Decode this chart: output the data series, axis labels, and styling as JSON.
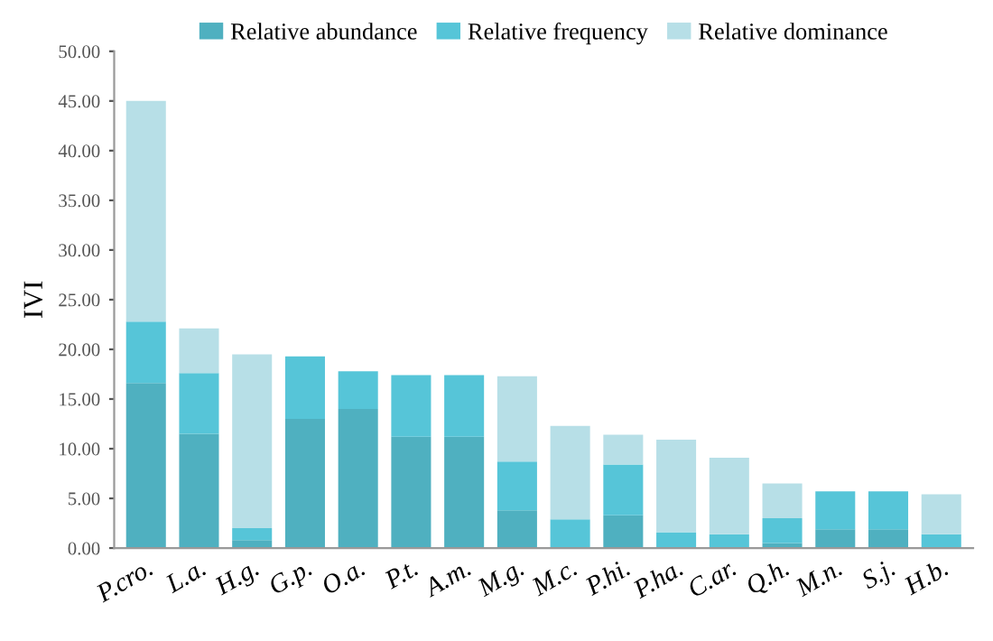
{
  "chart_data": {
    "type": "bar",
    "stacked": true,
    "ylabel": "IVI",
    "categories": [
      "P.cro.",
      "L.a.",
      "H.g.",
      "G.p.",
      "O.a.",
      "P.t.",
      "A.m.",
      "M.g.",
      "M.c.",
      "P.hi.",
      "P.ha.",
      "C.ar.",
      "Q.h.",
      "M.n.",
      "S.j.",
      "H.b."
    ],
    "series": [
      {
        "name": "Relative abundance",
        "color": "#4fb0c0",
        "values": [
          16.6,
          11.5,
          0.8,
          13.0,
          14.0,
          11.2,
          11.2,
          3.8,
          null,
          3.3,
          null,
          null,
          0.5,
          1.9,
          1.9,
          null
        ]
      },
      {
        "name": "Relative frequency",
        "color": "#56c5d8",
        "values": [
          6.2,
          6.1,
          1.2,
          6.3,
          3.8,
          6.2,
          6.2,
          4.9,
          2.9,
          5.1,
          1.6,
          1.4,
          2.5,
          3.8,
          3.8,
          1.4
        ]
      },
      {
        "name": "Relative dominance",
        "color": "#b7dfe7",
        "values": [
          22.2,
          4.5,
          17.5,
          0,
          0,
          0,
          0,
          8.6,
          9.4,
          3.0,
          9.3,
          7.7,
          3.5,
          0,
          0,
          4.0
        ]
      }
    ],
    "ylim": [
      0,
      50
    ],
    "yticks": [
      {
        "value": 0,
        "label": "0.00"
      },
      {
        "value": 5,
        "label": "5.00"
      },
      {
        "value": 10,
        "label": "10.00"
      },
      {
        "value": 15,
        "label": "15.00"
      },
      {
        "value": 20,
        "label": "20.00"
      },
      {
        "value": 25,
        "label": "25.00"
      },
      {
        "value": 30,
        "label": "30.00"
      },
      {
        "value": 35,
        "label": "35.00"
      },
      {
        "value": 40,
        "label": "40.00"
      },
      {
        "value": 45,
        "label": "45.00"
      },
      {
        "value": 50,
        "label": "50.00"
      }
    ],
    "grid": false,
    "legend": "top"
  }
}
